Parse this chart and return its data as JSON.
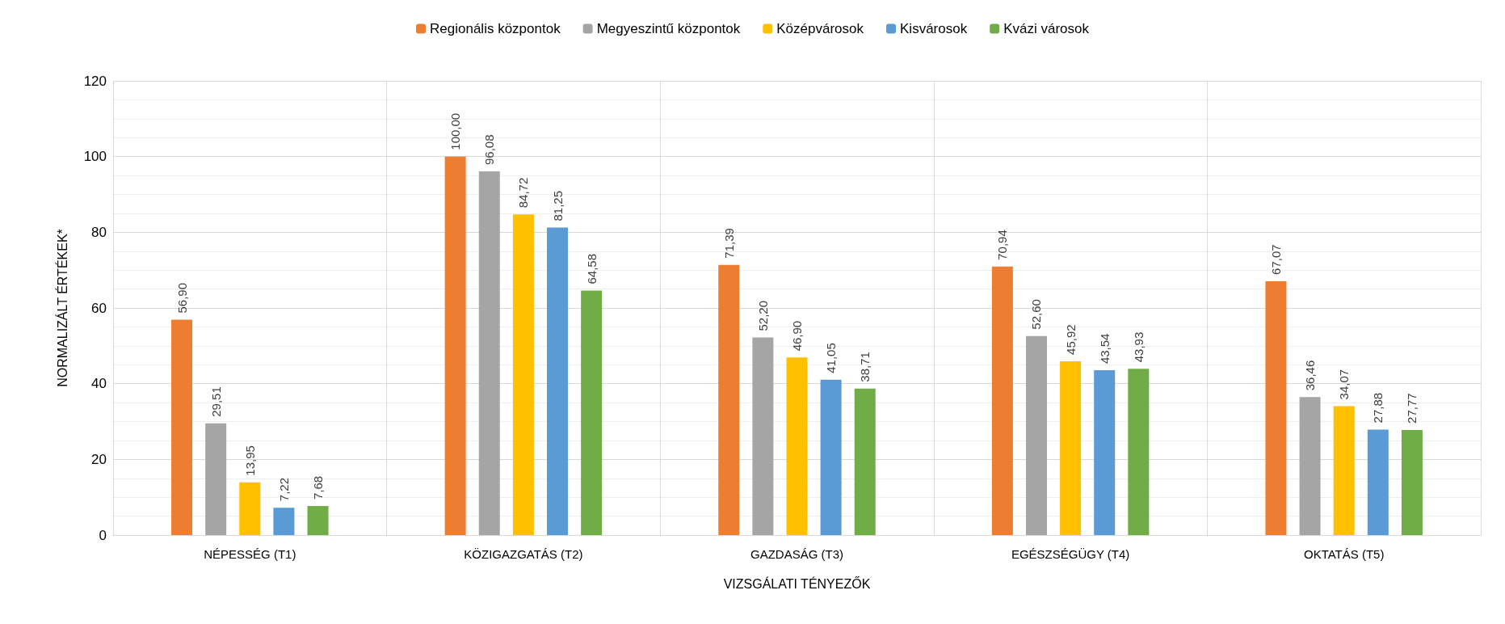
{
  "chart_data": {
    "type": "bar",
    "xlabel": "VIZSGÁLATI TÉNYEZŐK",
    "ylabel": "NORMALIZÁLT ÉRTÉKEK*",
    "categories": [
      "NÉPESSÉG (T1)",
      "KÖZIGAZGATÁS (T2)",
      "GAZDASÁG (T3)",
      "EGÉSZSÉGÜGY (T4)",
      "OKTATÁS (T5)"
    ],
    "series": [
      {
        "name": "Regionális központok",
        "color": "#ed7d31",
        "values": [
          56.9,
          100.0,
          71.39,
          70.94,
          67.07
        ],
        "value_labels": [
          "56,90",
          "100,00",
          "71,39",
          "70,94",
          "67,07"
        ]
      },
      {
        "name": "Megyeszintű központok",
        "color": "#a5a5a5",
        "values": [
          29.51,
          96.08,
          52.2,
          52.6,
          36.46
        ],
        "value_labels": [
          "29,51",
          "96,08",
          "52,20",
          "52,60",
          "36,46"
        ]
      },
      {
        "name": "Középvárosok",
        "color": "#ffc000",
        "values": [
          13.95,
          84.72,
          46.9,
          45.92,
          34.07
        ],
        "value_labels": [
          "13,95",
          "84,72",
          "46,90",
          "45,92",
          "34,07"
        ]
      },
      {
        "name": "Kisvárosok",
        "color": "#5b9bd5",
        "values": [
          7.22,
          81.25,
          41.05,
          43.54,
          27.88
        ],
        "value_labels": [
          "7,22",
          "81,25",
          "41,05",
          "43,54",
          "27,88"
        ]
      },
      {
        "name": "Kvázi városok",
        "color": "#70ad47",
        "values": [
          7.68,
          64.58,
          38.71,
          43.93,
          27.77
        ],
        "value_labels": [
          "7,68",
          "64,58",
          "38,71",
          "43,93",
          "27,77"
        ]
      }
    ],
    "ylim": [
      0,
      120
    ],
    "yticks": [
      0,
      20,
      40,
      60,
      80,
      100,
      120
    ],
    "grid": true,
    "legend": "top"
  }
}
